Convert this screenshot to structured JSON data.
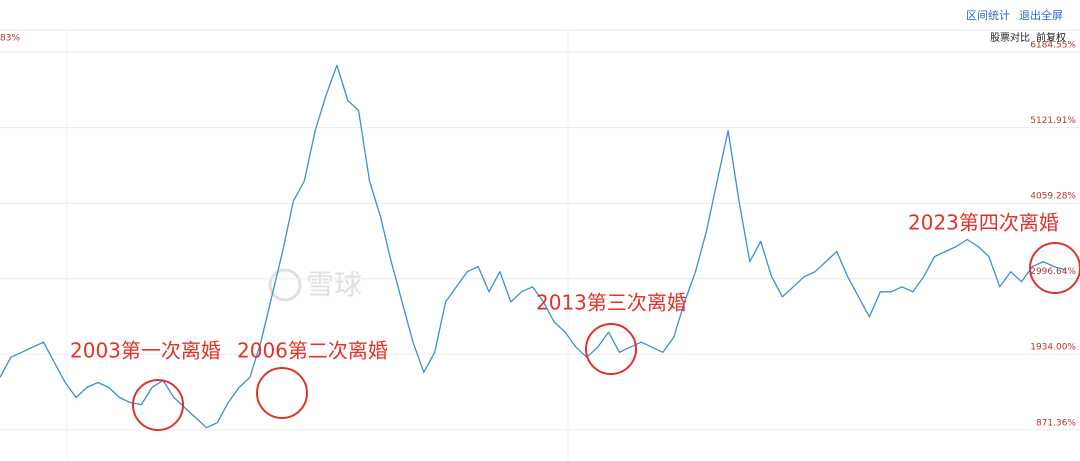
{
  "toolbar": [
    "区间统计",
    "退出全屏"
  ],
  "options": [
    "股票对比",
    "前复权"
  ],
  "corner_label": "83%",
  "watermark": "雪球",
  "chart_data": {
    "type": "line",
    "color": "#3b8fd6",
    "grid": true,
    "ylim": [
      432,
      6496
    ],
    "yticks": [
      {
        "value": 6184.55,
        "label": "6184.55%"
      },
      {
        "value": 5121.91,
        "label": "5121.91%"
      },
      {
        "value": 4059.28,
        "label": "4059.28%"
      },
      {
        "value": 2996.64,
        "label": "2996.64%"
      },
      {
        "value": 1934.0,
        "label": "1934.00%"
      },
      {
        "value": 871.36,
        "label": "871.36%"
      }
    ],
    "annotations": [
      "2003第一次离婚",
      "2006第二次离婚",
      "2013第三次离婚",
      "2023第四次离婚"
    ],
    "values": [
      1608,
      1892,
      1962,
      2033,
      2104,
      1821,
      1537,
      1325,
      1467,
      1537,
      1467,
      1325,
      1254,
      1226,
      1467,
      1566,
      1325,
      1183,
      1042,
      900,
      971,
      1254,
      1467,
      1608,
      2104,
      2742,
      3379,
      4088,
      4371,
      5080,
      5575,
      6000,
      5504,
      5363,
      4371,
      3875,
      3237,
      2671,
      2104,
      1680,
      1962,
      2671,
      2883,
      3096,
      3167,
      2813,
      3096,
      2671,
      2813,
      2883,
      2671,
      2388,
      2246,
      2033,
      1892,
      2033,
      2246,
      1962,
      2033,
      2104,
      2033,
      1962,
      2175,
      2671,
      3096,
      3662,
      4371,
      5080,
      4088,
      3237,
      3521,
      3025,
      2742,
      2883,
      3025,
      3096,
      3237,
      3379,
      3025,
      2742,
      2459,
      2813,
      2813,
      2883,
      2813,
      3025,
      3308,
      3379,
      3450,
      3549,
      3450,
      3308,
      2883,
      3096,
      2954,
      3167,
      3237,
      3167,
      3124
    ]
  }
}
